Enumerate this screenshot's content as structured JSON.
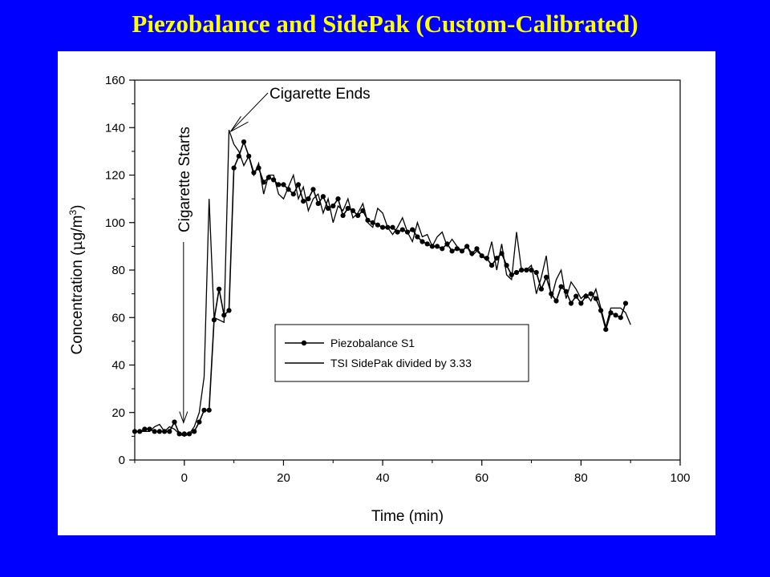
{
  "slide": {
    "title": "Piezobalance and SidePak (Custom-Calibrated)",
    "title_color": "#ffff00",
    "background_color": "#0000ff"
  },
  "chart_data": {
    "type": "line",
    "xlabel": "Time (min)",
    "ylabel_prefix": "Concentration (",
    "ylabel_mu": "μ",
    "ylabel_unit": "g/m",
    "ylabel_sup": "3",
    "ylabel_suffix": ")",
    "xlim": [
      -10,
      100
    ],
    "ylim": [
      0,
      160
    ],
    "xticks": [
      0,
      20,
      40,
      60,
      80,
      100
    ],
    "yticks": [
      0,
      20,
      40,
      60,
      80,
      100,
      120,
      140,
      160
    ],
    "grid": false,
    "legend": "center-right",
    "annotations": [
      {
        "text": "Cigarette Starts",
        "x": 0,
        "y": 15
      },
      {
        "text": "Cigarette Ends",
        "x": 9,
        "y": 139
      }
    ],
    "series": [
      {
        "name": "Piezobalance S1",
        "marker": "circle",
        "x": [
          -10,
          -9,
          -8,
          -7,
          -6,
          -5,
          -4,
          -3,
          -2,
          -1,
          0,
          1,
          2,
          3,
          4,
          5,
          6,
          7,
          8,
          9,
          10,
          11,
          12,
          13,
          14,
          15,
          16,
          17,
          18,
          19,
          20,
          21,
          22,
          23,
          24,
          25,
          26,
          27,
          28,
          29,
          30,
          31,
          32,
          33,
          34,
          35,
          36,
          37,
          38,
          39,
          40,
          41,
          42,
          43,
          44,
          45,
          46,
          47,
          48,
          49,
          50,
          51,
          52,
          53,
          54,
          55,
          56,
          57,
          58,
          59,
          60,
          61,
          62,
          63,
          64,
          65,
          66,
          67,
          68,
          69,
          70,
          71,
          72,
          73,
          74,
          75,
          76,
          77,
          78,
          79,
          80,
          81,
          82,
          83,
          84,
          85,
          86,
          87,
          88,
          89
        ],
        "y": [
          12,
          12,
          13,
          13,
          12,
          12,
          12,
          12,
          16,
          11,
          11,
          11,
          12,
          16,
          21,
          21,
          59,
          72,
          61,
          63,
          123,
          128,
          134,
          128,
          121,
          123,
          117,
          119,
          118,
          116,
          116,
          114,
          112,
          116,
          109,
          110,
          114,
          108,
          111,
          106,
          107,
          110,
          103,
          106,
          105,
          103,
          105,
          101,
          100,
          99,
          98,
          98,
          98,
          96,
          97,
          96,
          97,
          94,
          92,
          91,
          90,
          90,
          89,
          91,
          88,
          89,
          88,
          90,
          87,
          89,
          86,
          85,
          82,
          85,
          87,
          82,
          78,
          79,
          80,
          80,
          80,
          79,
          72,
          77,
          70,
          67,
          73,
          71,
          66,
          69,
          66,
          69,
          70,
          68,
          63,
          55,
          62,
          61,
          60,
          66
        ]
      },
      {
        "name": "TSI SidePak divided by 3.33",
        "marker": "none",
        "x": [
          -10,
          -9,
          -8,
          -7,
          -6,
          -5,
          -4,
          -3,
          -2,
          -1,
          0,
          1,
          2,
          3,
          4,
          5,
          6,
          7,
          8,
          9,
          10,
          11,
          12,
          13,
          14,
          15,
          16,
          17,
          18,
          19,
          20,
          21,
          22,
          23,
          24,
          25,
          26,
          27,
          28,
          29,
          30,
          31,
          32,
          33,
          34,
          35,
          36,
          37,
          38,
          39,
          40,
          41,
          42,
          43,
          44,
          45,
          46,
          47,
          48,
          49,
          50,
          51,
          52,
          53,
          54,
          55,
          56,
          57,
          58,
          59,
          60,
          61,
          62,
          63,
          64,
          65,
          66,
          67,
          68,
          69,
          70,
          71,
          72,
          73,
          74,
          75,
          76,
          77,
          78,
          79,
          80,
          81,
          82,
          83,
          84,
          85,
          86,
          87,
          88,
          89,
          90
        ],
        "y": [
          12,
          12,
          12,
          12,
          14,
          15,
          12,
          14,
          13,
          11,
          10,
          11,
          14,
          20,
          35,
          110,
          60,
          59,
          58,
          139,
          133,
          130,
          124,
          128,
          120,
          125,
          112,
          120,
          120,
          112,
          110,
          115,
          120,
          110,
          115,
          105,
          110,
          112,
          104,
          110,
          100,
          107,
          105,
          110,
          102,
          104,
          108,
          100,
          98,
          106,
          104,
          98,
          95,
          98,
          102,
          96,
          92,
          100,
          94,
          95,
          90,
          94,
          96,
          90,
          93,
          90,
          88,
          90,
          86,
          88,
          86,
          84,
          92,
          80,
          91,
          78,
          76,
          96,
          80,
          80,
          82,
          70,
          77,
          86,
          68,
          76,
          80,
          68,
          75,
          72,
          68,
          70,
          67,
          72,
          64,
          56,
          64,
          64,
          64,
          62,
          57
        ]
      }
    ]
  }
}
